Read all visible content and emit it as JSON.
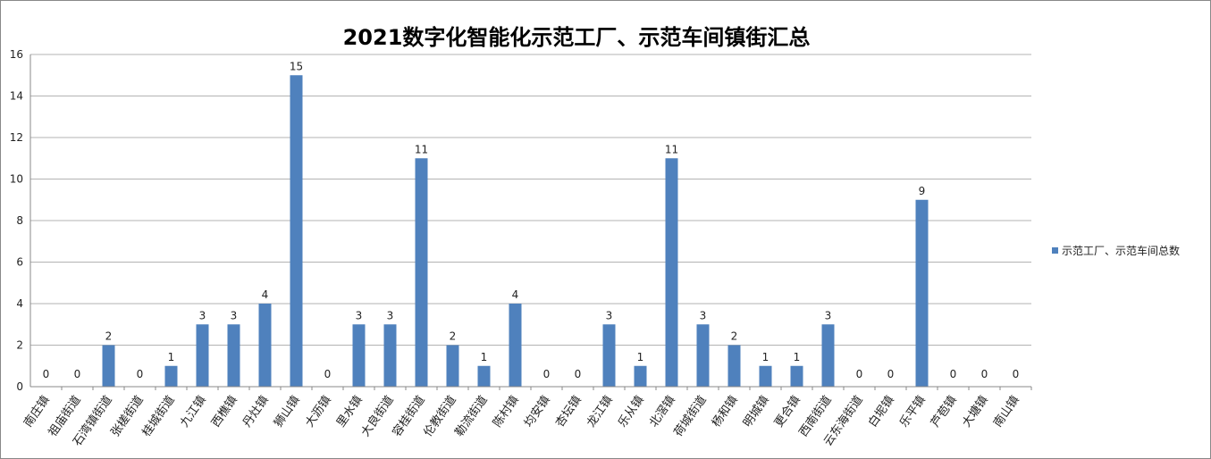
{
  "chart_data": {
    "type": "bar",
    "title": "2021数字化智能化示范工厂、示范车间镇街汇总",
    "xlabel": "",
    "ylabel": "",
    "ylim": [
      0,
      16
    ],
    "yticks": [
      "0",
      "2",
      "4",
      "6",
      "8",
      "10",
      "12",
      "14",
      "16"
    ],
    "grid": true,
    "legend_position": "right",
    "categories": [
      "南庄镇",
      "祖庙街道",
      "石湾镇街道",
      "张槎街道",
      "桂城街道",
      "九江镇",
      "西樵镇",
      "丹灶镇",
      "狮山镇",
      "大沥镇",
      "里水镇",
      "大良街道",
      "容桂街道",
      "伦教街道",
      "勒流街道",
      "陈村镇",
      "均安镇",
      "杏坛镇",
      "龙江镇",
      "乐从镇",
      "北滘镇",
      "荷城街道",
      "杨和镇",
      "明城镇",
      "更合镇",
      "西南街道",
      "云东海街道",
      "白坭镇",
      "乐平镇",
      "芦苞镇",
      "大塘镇",
      "南山镇"
    ],
    "series": [
      {
        "name": "示范工厂、示范车间总数",
        "color": "#4f81bd",
        "values": [
          0,
          0,
          2,
          0,
          1,
          3,
          3,
          4,
          15,
          0,
          3,
          3,
          11,
          2,
          1,
          4,
          0,
          0,
          3,
          1,
          11,
          3,
          2,
          1,
          1,
          3,
          0,
          0,
          9,
          0,
          0,
          0
        ],
        "labels": [
          "0",
          "0",
          "2",
          "0",
          "1",
          "3",
          "3",
          "4",
          "15",
          "0",
          "3",
          "3",
          "11",
          "2",
          "1",
          "4",
          "0",
          "0",
          "3",
          "1",
          "11",
          "3",
          "2",
          "1",
          "1",
          "3",
          "0",
          "0",
          "9",
          "0",
          "0",
          "0"
        ]
      }
    ]
  }
}
